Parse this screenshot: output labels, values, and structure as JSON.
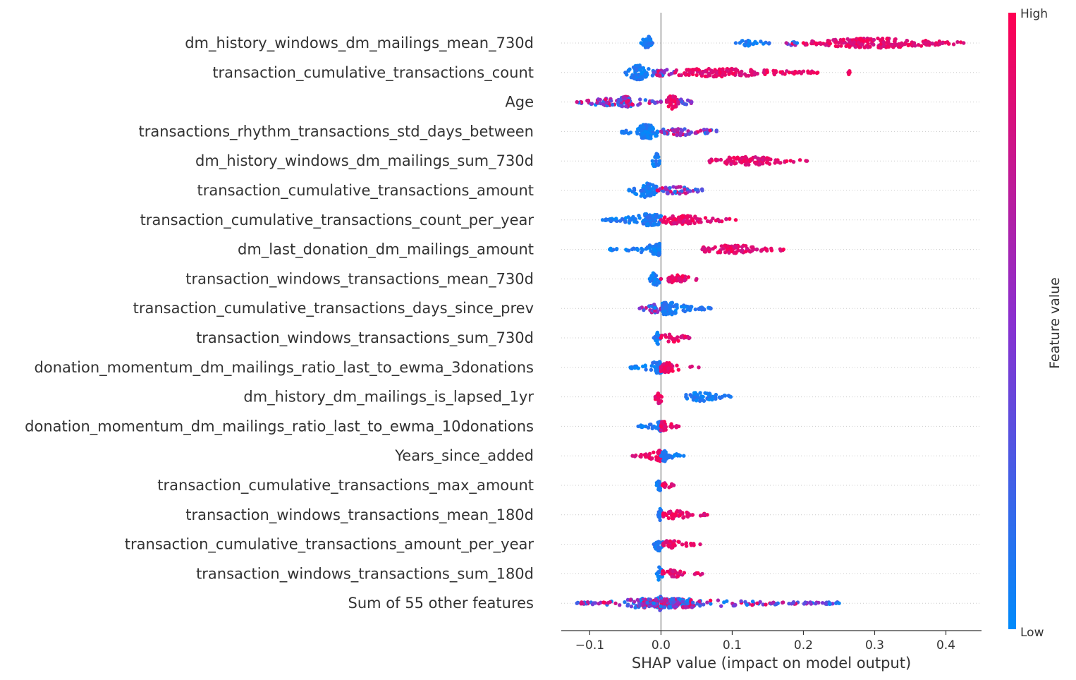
{
  "chart_data": {
    "type": "scatter",
    "subtype": "shap-beeswarm",
    "title": "",
    "xlabel": "SHAP value (impact on model output)",
    "xlim": [
      -0.14,
      0.45
    ],
    "xticks": [
      -0.1,
      0.0,
      0.1,
      0.2,
      0.3,
      0.4
    ],
    "xtick_labels": [
      "−0.1",
      "0.0",
      "0.1",
      "0.2",
      "0.3",
      "0.4"
    ],
    "zero_line": true,
    "colorbar": {
      "title": "Feature value",
      "high_label": "High",
      "low_label": "Low",
      "high_color": "#ff0052",
      "low_color": "#008bfb",
      "mid_color": "#8a30d0"
    },
    "features": [
      {
        "name": "dm_history_windows_dm_mailings_mean_730d",
        "segments": [
          {
            "min": -0.028,
            "max": -0.012,
            "center": -0.02,
            "dense": 2.2,
            "color": "low"
          },
          {
            "min": 0.105,
            "max": 0.152,
            "center": 0.12,
            "dense": 0.6,
            "color": "low"
          },
          {
            "min": 0.176,
            "max": 0.191,
            "center": 0.185,
            "dense": 0.4,
            "color": "mix"
          },
          {
            "min": 0.2,
            "max": 0.425,
            "center": 0.3,
            "dense": 1.2,
            "color": "high"
          }
        ]
      },
      {
        "name": "transaction_cumulative_transactions_count",
        "segments": [
          {
            "min": -0.05,
            "max": -0.008,
            "center": -0.03,
            "dense": 2.2,
            "color": "low"
          },
          {
            "min": -0.01,
            "max": 0.02,
            "center": 0.0,
            "dense": 0.9,
            "color": "mix"
          },
          {
            "min": 0.02,
            "max": 0.22,
            "center": 0.08,
            "dense": 1.0,
            "color": "high"
          },
          {
            "min": 0.263,
            "max": 0.265,
            "center": 0.264,
            "dense": 0.3,
            "color": "high"
          }
        ]
      },
      {
        "name": "Age",
        "segments": [
          {
            "min": -0.118,
            "max": -0.06,
            "center": -0.08,
            "dense": 0.8,
            "color": "mix"
          },
          {
            "min": -0.06,
            "max": 0.0,
            "center": -0.05,
            "dense": 1.4,
            "color": "mix"
          },
          {
            "min": 0.008,
            "max": 0.024,
            "center": 0.016,
            "dense": 2.4,
            "color": "high"
          },
          {
            "min": 0.024,
            "max": 0.043,
            "center": 0.03,
            "dense": 0.7,
            "color": "mix"
          }
        ]
      },
      {
        "name": "transactions_rhythm_transactions_std_days_between",
        "segments": [
          {
            "min": -0.055,
            "max": -0.005,
            "center": -0.02,
            "dense": 2.2,
            "color": "low"
          },
          {
            "min": 0.0,
            "max": 0.078,
            "center": 0.03,
            "dense": 0.9,
            "color": "mix"
          }
        ]
      },
      {
        "name": "dm_history_windows_dm_mailings_sum_730d",
        "segments": [
          {
            "min": -0.012,
            "max": -0.002,
            "center": -0.007,
            "dense": 2.0,
            "color": "low"
          },
          {
            "min": 0.068,
            "max": 0.205,
            "center": 0.12,
            "dense": 1.0,
            "color": "high"
          }
        ]
      },
      {
        "name": "transaction_cumulative_transactions_amount",
        "segments": [
          {
            "min": -0.045,
            "max": -0.005,
            "center": -0.02,
            "dense": 2.0,
            "color": "low"
          },
          {
            "min": -0.005,
            "max": 0.058,
            "center": 0.02,
            "dense": 0.9,
            "color": "mix"
          }
        ]
      },
      {
        "name": "transaction_cumulative_transactions_count_per_year",
        "segments": [
          {
            "min": -0.082,
            "max": 0.0,
            "center": -0.015,
            "dense": 1.6,
            "color": "low"
          },
          {
            "min": 0.0,
            "max": 0.105,
            "center": 0.03,
            "dense": 1.0,
            "color": "high"
          }
        ]
      },
      {
        "name": "dm_last_donation_dm_mailings_amount",
        "segments": [
          {
            "min": -0.072,
            "max": -0.002,
            "center": -0.004,
            "dense": 1.5,
            "color": "low"
          },
          {
            "min": 0.058,
            "max": 0.172,
            "center": 0.1,
            "dense": 1.0,
            "color": "high"
          }
        ]
      },
      {
        "name": "transaction_windows_transactions_mean_730d",
        "segments": [
          {
            "min": -0.016,
            "max": 0.0,
            "center": -0.008,
            "dense": 1.8,
            "color": "low"
          },
          {
            "min": 0.0,
            "max": 0.05,
            "center": 0.02,
            "dense": 0.9,
            "color": "high"
          }
        ]
      },
      {
        "name": "transaction_cumulative_transactions_days_since_prev",
        "segments": [
          {
            "min": -0.03,
            "max": 0.0,
            "center": -0.01,
            "dense": 1.0,
            "color": "mix"
          },
          {
            "min": 0.002,
            "max": 0.07,
            "center": 0.01,
            "dense": 1.7,
            "color": "low"
          }
        ]
      },
      {
        "name": "transaction_windows_transactions_sum_730d",
        "segments": [
          {
            "min": -0.01,
            "max": 0.0,
            "center": -0.005,
            "dense": 1.7,
            "color": "low"
          },
          {
            "min": 0.0,
            "max": 0.04,
            "center": 0.015,
            "dense": 0.9,
            "color": "high"
          }
        ]
      },
      {
        "name": "donation_momentum_dm_mailings_ratio_last_to_ewma_3donations",
        "segments": [
          {
            "min": -0.043,
            "max": 0.0,
            "center": -0.003,
            "dense": 1.5,
            "color": "low"
          },
          {
            "min": 0.0,
            "max": 0.053,
            "center": 0.007,
            "dense": 1.2,
            "color": "high"
          }
        ]
      },
      {
        "name": "dm_history_dm_mailings_is_lapsed_1yr",
        "segments": [
          {
            "min": -0.008,
            "max": 0.001,
            "center": -0.003,
            "dense": 1.8,
            "color": "high"
          },
          {
            "min": 0.035,
            "max": 0.098,
            "center": 0.055,
            "dense": 1.0,
            "color": "low"
          }
        ]
      },
      {
        "name": "donation_momentum_dm_mailings_ratio_last_to_ewma_10donations",
        "segments": [
          {
            "min": -0.032,
            "max": 0.0,
            "center": -0.002,
            "dense": 1.3,
            "color": "low"
          },
          {
            "min": 0.0,
            "max": 0.025,
            "center": 0.004,
            "dense": 1.2,
            "color": "high"
          }
        ]
      },
      {
        "name": "Years_since_added",
        "segments": [
          {
            "min": -0.04,
            "max": 0.0,
            "center": -0.002,
            "dense": 1.4,
            "color": "high"
          },
          {
            "min": 0.0,
            "max": 0.032,
            "center": 0.005,
            "dense": 1.4,
            "color": "low"
          }
        ]
      },
      {
        "name": "transaction_cumulative_transactions_max_amount",
        "segments": [
          {
            "min": -0.006,
            "max": 0.002,
            "center": -0.002,
            "dense": 1.6,
            "color": "low"
          },
          {
            "min": 0.002,
            "max": 0.018,
            "center": 0.006,
            "dense": 0.8,
            "color": "high"
          }
        ]
      },
      {
        "name": "transaction_windows_transactions_mean_180d",
        "segments": [
          {
            "min": -0.004,
            "max": 0.003,
            "center": -0.001,
            "dense": 1.8,
            "color": "low"
          },
          {
            "min": 0.003,
            "max": 0.065,
            "center": 0.02,
            "dense": 0.9,
            "color": "high"
          }
        ]
      },
      {
        "name": "transaction_cumulative_transactions_amount_per_year",
        "segments": [
          {
            "min": -0.01,
            "max": 0.003,
            "center": -0.003,
            "dense": 1.7,
            "color": "low"
          },
          {
            "min": 0.003,
            "max": 0.055,
            "center": 0.015,
            "dense": 0.9,
            "color": "high"
          }
        ]
      },
      {
        "name": "transaction_windows_transactions_sum_180d",
        "segments": [
          {
            "min": -0.006,
            "max": 0.002,
            "center": -0.002,
            "dense": 1.8,
            "color": "low"
          },
          {
            "min": 0.002,
            "max": 0.058,
            "center": 0.015,
            "dense": 0.9,
            "color": "high"
          }
        ]
      },
      {
        "name": "Sum of 55 other features",
        "segments": [
          {
            "min": -0.118,
            "max": -0.005,
            "center": -0.02,
            "dense": 1.2,
            "color": "mix"
          },
          {
            "min": -0.01,
            "max": 0.005,
            "center": -0.002,
            "dense": 2.4,
            "color": "mix"
          },
          {
            "min": 0.005,
            "max": 0.25,
            "center": 0.02,
            "dense": 1.1,
            "color": "mix"
          }
        ]
      }
    ]
  }
}
